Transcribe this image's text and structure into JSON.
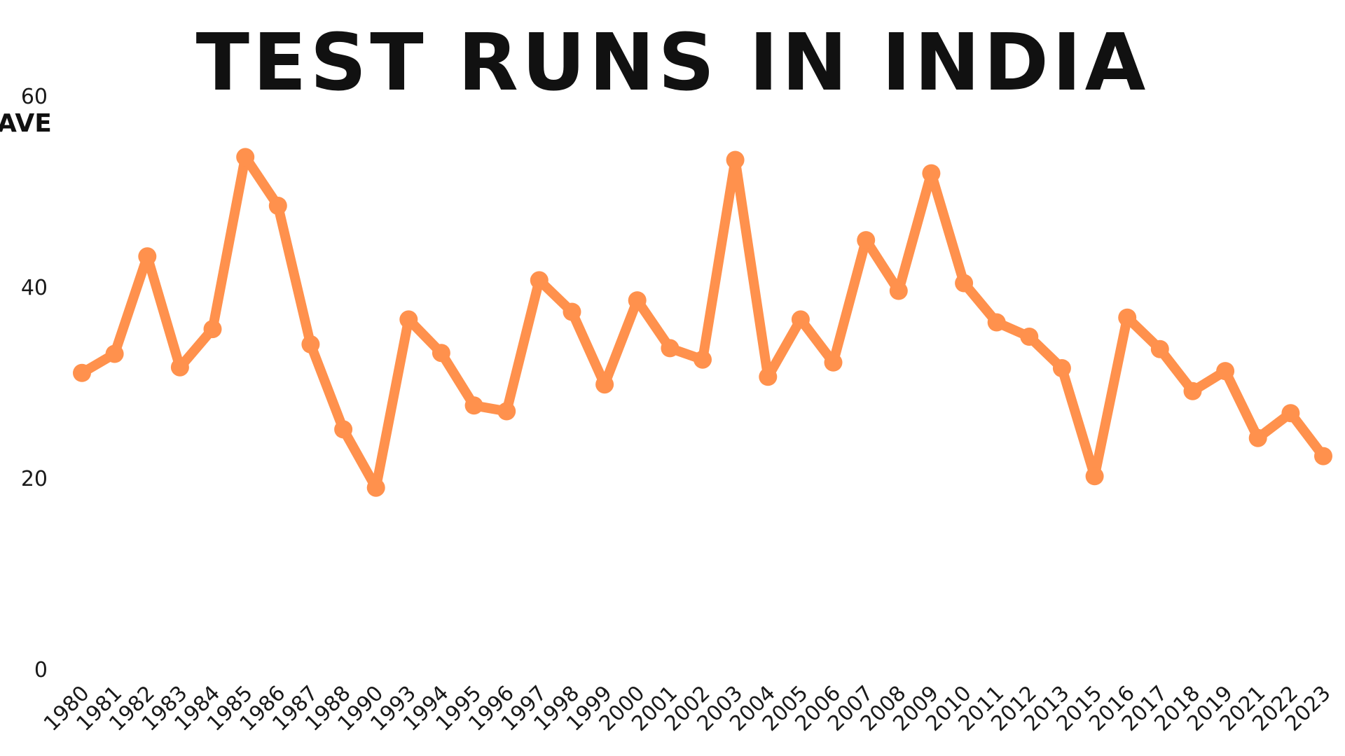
{
  "chart_data": {
    "type": "line",
    "title": "TEST RUNS IN INDIA",
    "xlabel": "",
    "ylabel": "AVE",
    "ylim": [
      0,
      60
    ],
    "yticks": [
      0,
      20,
      40,
      60
    ],
    "grid": false,
    "legend": "none",
    "color": "#FF914D",
    "series": [
      {
        "x": [
          "1980",
          "1981",
          "1982",
          "1983",
          "1984",
          "1985",
          "1986",
          "1987",
          "1988",
          "1990",
          "1993",
          "1994",
          "1995",
          "1996",
          "1997",
          "1998",
          "1999",
          "2000",
          "2001",
          "2002",
          "2003",
          "2004",
          "2005",
          "2006",
          "2007",
          "2008",
          "2009",
          "2010",
          "2011",
          "2012",
          "2013",
          "2015",
          "2016",
          "2017",
          "2018",
          "2019",
          "2021",
          "2022",
          "2023"
        ],
        "y": [
          31.0,
          33.0,
          43.2,
          31.6,
          35.6,
          53.6,
          48.5,
          34.0,
          25.1,
          19.0,
          36.6,
          33.1,
          27.6,
          27.0,
          40.7,
          37.4,
          29.8,
          38.6,
          33.6,
          32.4,
          53.3,
          30.6,
          36.6,
          32.1,
          44.9,
          39.6,
          51.9,
          40.4,
          36.3,
          34.8,
          31.5,
          20.2,
          36.8,
          33.5,
          29.1,
          31.2,
          24.2,
          26.8,
          22.3
        ]
      }
    ]
  }
}
